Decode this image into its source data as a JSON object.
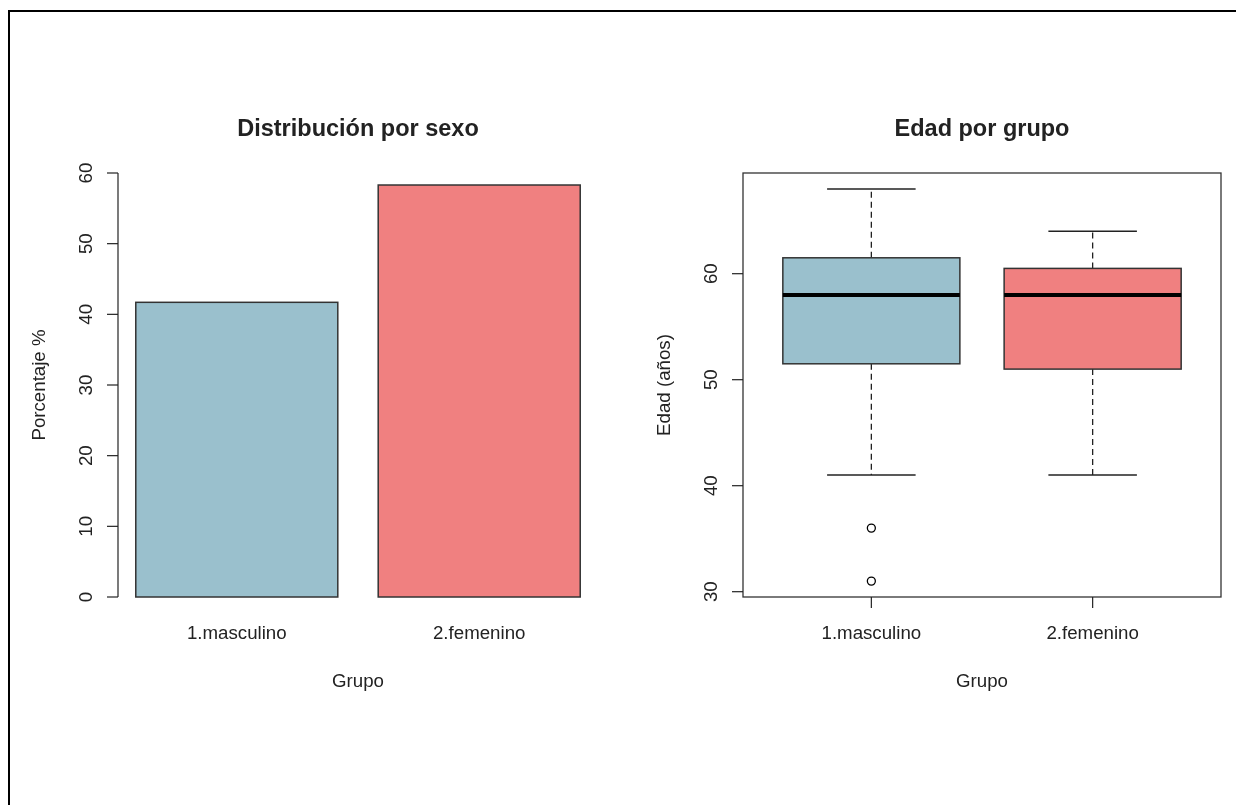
{
  "chart_data": [
    {
      "type": "bar",
      "title": "Distribución por sexo",
      "xlabel": "Grupo",
      "ylabel": "Porcentaje %",
      "categories": [
        "1.masculino",
        "2.femenino"
      ],
      "values": [
        41.7,
        58.3
      ],
      "colors": [
        "#9ac0cd",
        "#f08080"
      ],
      "ylim": [
        0,
        60
      ],
      "yticks": [
        0,
        10,
        20,
        30,
        40,
        50,
        60
      ]
    },
    {
      "type": "box",
      "title": "Edad por grupo",
      "xlabel": "Grupo",
      "ylabel": "Edad (años)",
      "categories": [
        "1.masculino",
        "2.femenino"
      ],
      "boxes": [
        {
          "low": 41,
          "q1": 51.5,
          "median": 58,
          "q3": 61.5,
          "high": 68,
          "outliers": [
            36,
            31
          ]
        },
        {
          "low": 41,
          "q1": 51,
          "median": 58,
          "q3": 60.5,
          "high": 64
        }
      ],
      "colors": [
        "#9ac0cd",
        "#f08080"
      ],
      "ylim": [
        29.5,
        69.5
      ],
      "yticks": [
        30,
        40,
        50,
        60
      ]
    }
  ]
}
